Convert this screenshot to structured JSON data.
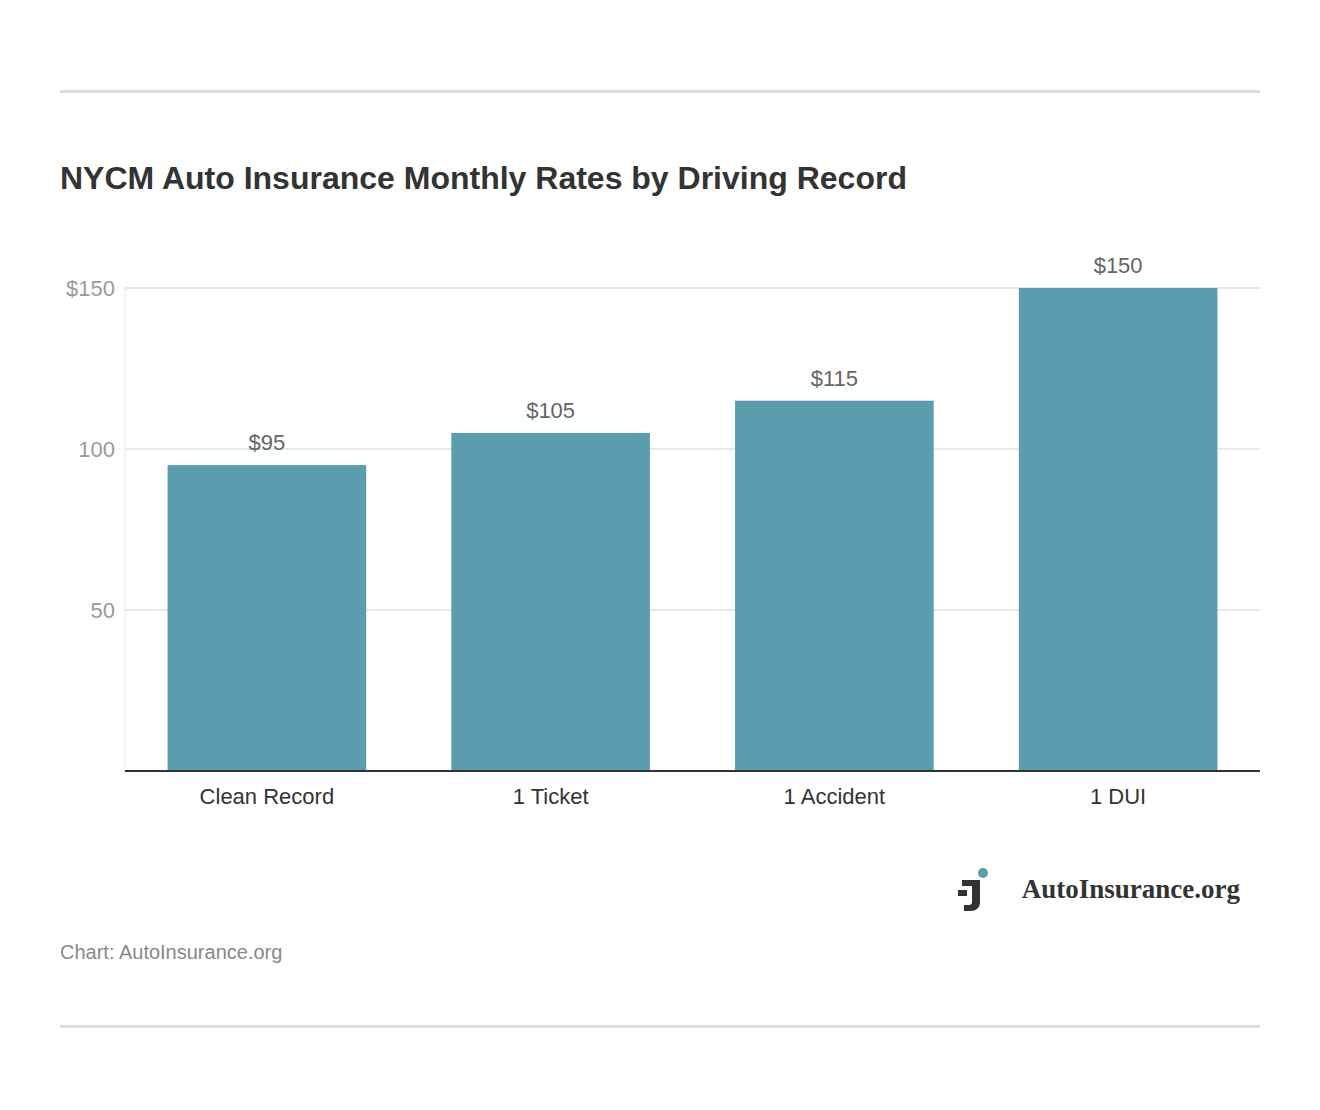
{
  "chart_data": {
    "type": "bar",
    "title": "NYCM Auto Insurance Monthly Rates by Driving Record",
    "categories": [
      "Clean Record",
      "1 Ticket",
      "1 Accident",
      "1 DUI"
    ],
    "values": [
      95,
      105,
      115,
      150
    ],
    "value_labels": [
      "$95",
      "$105",
      "$115",
      "$150"
    ],
    "color": "#5b9daf",
    "ylim": [
      0,
      150
    ],
    "yticks": [
      {
        "value": 150,
        "label": "$150"
      },
      100,
      50
    ],
    "grid": true,
    "data_labels": true
  },
  "logo": "AutoInsurance.org",
  "source": "Chart: AutoInsurance.org"
}
